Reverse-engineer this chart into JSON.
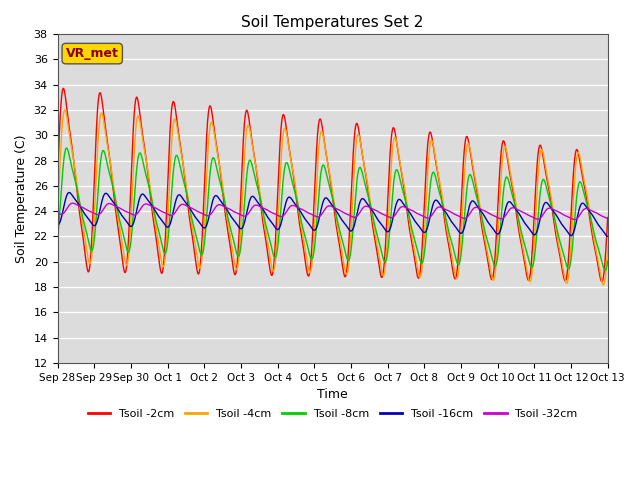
{
  "title": "Soil Temperatures Set 2",
  "xlabel": "Time",
  "ylabel": "Soil Temperature (C)",
  "ylim": [
    12,
    38
  ],
  "yticks": [
    12,
    14,
    16,
    18,
    20,
    22,
    24,
    26,
    28,
    30,
    32,
    34,
    36,
    38
  ],
  "xtick_labels": [
    "Sep 28",
    "Sep 29",
    "Sep 30",
    "Oct 1",
    "Oct 2",
    "Oct 3",
    "Oct 4",
    "Oct 5",
    "Oct 6",
    "Oct 7",
    "Oct 8",
    "Oct 9",
    "Oct 10",
    "Oct 11",
    "Oct 12",
    "Oct 13"
  ],
  "annotation_text": "VR_met",
  "annotation_color": "#8B0000",
  "annotation_bg": "#FFD700",
  "background_color": "#DCDCDC",
  "series": [
    {
      "label": "Tsoil -2cm",
      "color": "#FF0000",
      "amplitude": 9.0,
      "mean": 26.5,
      "phase": 0.0,
      "mean_drift": -0.2,
      "amp_drift": -0.02,
      "sharpness": 3.0
    },
    {
      "label": "Tsoil -4cm",
      "color": "#FFA500",
      "amplitude": 7.5,
      "mean": 26.0,
      "phase": 0.25,
      "mean_drift": -0.18,
      "amp_drift": -0.01,
      "sharpness": 2.5
    },
    {
      "label": "Tsoil -8cm",
      "color": "#00CC00",
      "amplitude": 5.0,
      "mean": 25.0,
      "phase": 0.55,
      "mean_drift": -0.15,
      "amp_drift": -0.01,
      "sharpness": 2.0
    },
    {
      "label": "Tsoil -16cm",
      "color": "#0000BB",
      "amplitude": 1.6,
      "mean": 24.2,
      "phase": 1.0,
      "mean_drift": -0.06,
      "amp_drift": 0.0,
      "sharpness": 1.5
    },
    {
      "label": "Tsoil -32cm",
      "color": "#CC00CC",
      "amplitude": 0.55,
      "mean": 24.2,
      "phase": 1.6,
      "mean_drift": -0.03,
      "amp_drift": 0.0,
      "sharpness": 1.0
    }
  ],
  "period_days": 1.0,
  "n_points": 3000,
  "start_day": 0,
  "end_day": 15.0
}
